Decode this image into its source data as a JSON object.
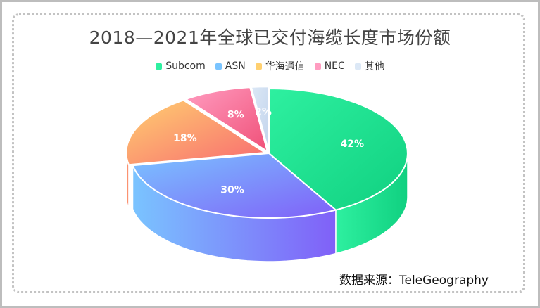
{
  "chart_data": {
    "type": "pie",
    "title": "2018—2021年全球已交付海缆长度市场份额",
    "categories": [
      "Subcom",
      "ASN",
      "华海通信",
      "NEC",
      "其他"
    ],
    "values": [
      42,
      30,
      18,
      8,
      2
    ],
    "labels": [
      "42%",
      "30%",
      "18%",
      "8%",
      "2%"
    ],
    "legend_position": "top",
    "style": "3d-exploded"
  },
  "colors": {
    "Subcom": [
      "#2EF0A0",
      "#10D080"
    ],
    "ASN": [
      "#7AC4FF",
      "#8060F8"
    ],
    "华海通信": [
      "#FFD070",
      "#F86A70"
    ],
    "NEC": [
      "#FF9CC0",
      "#F05078"
    ],
    "其他": [
      "#DCE8F6",
      "#C2D4EC"
    ]
  },
  "source": "数据来源：TeleGeography"
}
